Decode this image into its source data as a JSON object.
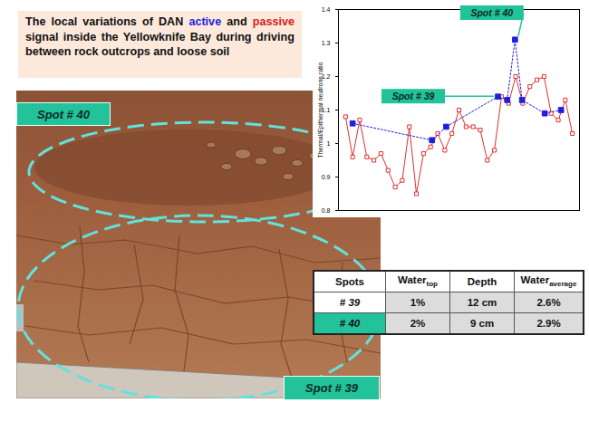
{
  "title": {
    "segments": [
      {
        "text": "The local variations of DAN "
      },
      {
        "text": "active",
        "color": "#1f1fe0"
      },
      {
        "text": " and "
      },
      {
        "text": "passive",
        "color": "#d42020"
      },
      {
        "text": " signal inside the Yellowknife Bay during driving between rock outcrops and loose soil"
      }
    ]
  },
  "photo": {
    "labels": [
      "Spot # 40",
      "Spot # 39"
    ]
  },
  "chart_data": {
    "type": "line",
    "ylabel": "Thermal/Epithermal neutrons ratio",
    "xlim": [
      0,
      34
    ],
    "ylim": [
      0.8,
      1.4
    ],
    "yticks": [
      0.8,
      0.9,
      1,
      1.1,
      1.2,
      1.3,
      1.4
    ],
    "tick_labels": "y",
    "grid": false,
    "series": [
      {
        "name": "passive",
        "color": "#e03030",
        "marker": "square-open",
        "line_style": "solid",
        "x": [
          1,
          2,
          3,
          4,
          5,
          6,
          7,
          8,
          9,
          10,
          11,
          12,
          13,
          14,
          15,
          16,
          17,
          18,
          19,
          20,
          21,
          22,
          23,
          24,
          25,
          26,
          27,
          28,
          29,
          30,
          31,
          32,
          33
        ],
        "values": [
          1.08,
          0.96,
          1.07,
          0.96,
          0.95,
          0.97,
          0.92,
          0.87,
          0.89,
          1.05,
          0.85,
          0.97,
          0.99,
          1.03,
          0.98,
          1.03,
          1.1,
          1.05,
          1.05,
          1.04,
          0.95,
          0.98,
          1.14,
          1.12,
          1.2,
          1.12,
          1.17,
          1.19,
          1.2,
          1.09,
          1.07,
          1.13,
          1.03
        ]
      },
      {
        "name": "active",
        "color": "#1f1fe0",
        "marker": "square",
        "line_style": "dotted",
        "x": [
          2.0,
          13.2,
          15.2,
          22.5,
          23.8,
          24.9,
          25.9,
          29.1,
          31.4
        ],
        "values": [
          1.06,
          1.01,
          1.05,
          1.14,
          1.13,
          1.31,
          1.13,
          1.09,
          1.1
        ]
      }
    ],
    "annotations": [
      {
        "text": "Spot # 40",
        "x": 24.9,
        "y": 1.31
      },
      {
        "text": "Spot # 39",
        "x": 22.5,
        "y": 1.14
      }
    ]
  },
  "table": {
    "header": [
      {
        "text": "Spots"
      },
      {
        "text": "Water",
        "sub": "top"
      },
      {
        "text": "Depth"
      },
      {
        "text": "Water",
        "sub": "average"
      }
    ],
    "rows": [
      [
        "# 39",
        "1%",
        "12 cm",
        "2.6%"
      ],
      [
        "# 40",
        "2%",
        "9 cm",
        "2.9%"
      ]
    ]
  }
}
